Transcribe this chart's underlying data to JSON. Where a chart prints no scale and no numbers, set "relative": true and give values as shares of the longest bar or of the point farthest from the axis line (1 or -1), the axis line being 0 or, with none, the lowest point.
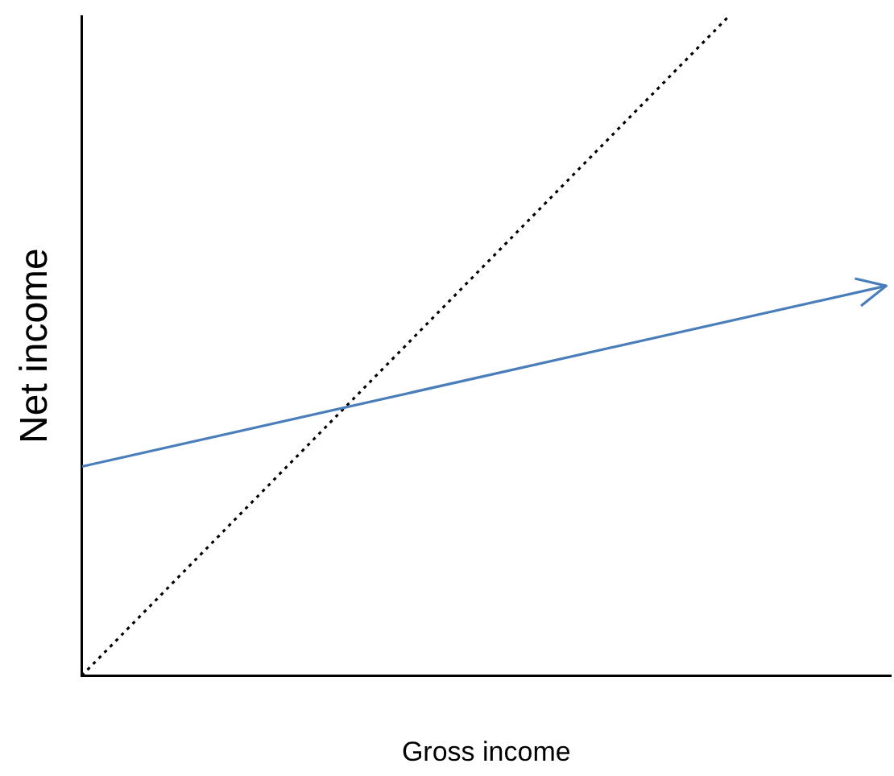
{
  "chart_data": {
    "type": "line",
    "relative": true,
    "xlabel": "Gross income",
    "ylabel": "Net income",
    "categories": [
      null,
      null,
      null,
      null,
      null,
      null,
      null,
      null,
      null,
      null,
      null
    ],
    "series": [
      {
        "color": "#000000",
        "line_style": "dotted",
        "values": [
          0,
          0.125,
          0.25,
          0.375,
          0.5,
          0.625,
          0.75,
          0.875,
          1,
          null,
          null
        ]
      }
    ],
    "grid": false,
    "legend": false,
    "tick_labels": false,
    "marker": "none"
  }
}
